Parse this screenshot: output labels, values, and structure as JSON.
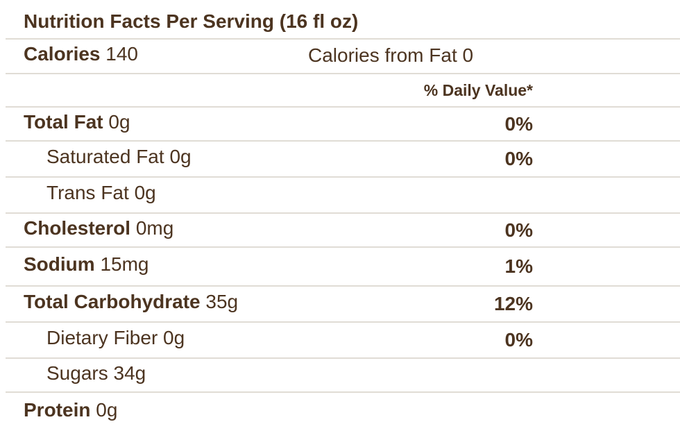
{
  "table": {
    "title": "Nutrition Facts Per Serving (16 fl oz)",
    "calories_label": "Calories",
    "calories_value": "140",
    "calories_from_fat": "Calories from Fat 0",
    "daily_value_header": "% Daily Value*",
    "rows": [
      {
        "label": "Total Fat",
        "amount": "0g",
        "dv": "0%",
        "bold": true,
        "indent": false
      },
      {
        "label": "Saturated Fat",
        "amount": "0g",
        "dv": "0%",
        "bold": false,
        "indent": true
      },
      {
        "label": "Trans Fat",
        "amount": "0g",
        "dv": "",
        "bold": false,
        "indent": true
      },
      {
        "label": "Cholesterol",
        "amount": "0mg",
        "dv": "0%",
        "bold": true,
        "indent": false
      },
      {
        "label": "Sodium",
        "amount": "15mg",
        "dv": "1%",
        "bold": true,
        "indent": false
      },
      {
        "label": "Total Carbohydrate",
        "amount": "35g",
        "dv": "12%",
        "bold": true,
        "indent": false
      },
      {
        "label": "Dietary Fiber",
        "amount": "0g",
        "dv": "0%",
        "bold": false,
        "indent": true
      },
      {
        "label": "Sugars",
        "amount": "34g",
        "dv": "",
        "bold": false,
        "indent": true
      },
      {
        "label": "Protein",
        "amount": "0g",
        "dv": "",
        "bold": true,
        "indent": false
      }
    ],
    "colors": {
      "text": "#4c3420",
      "line": "#e0dcd5",
      "background": "#ffffff"
    }
  }
}
